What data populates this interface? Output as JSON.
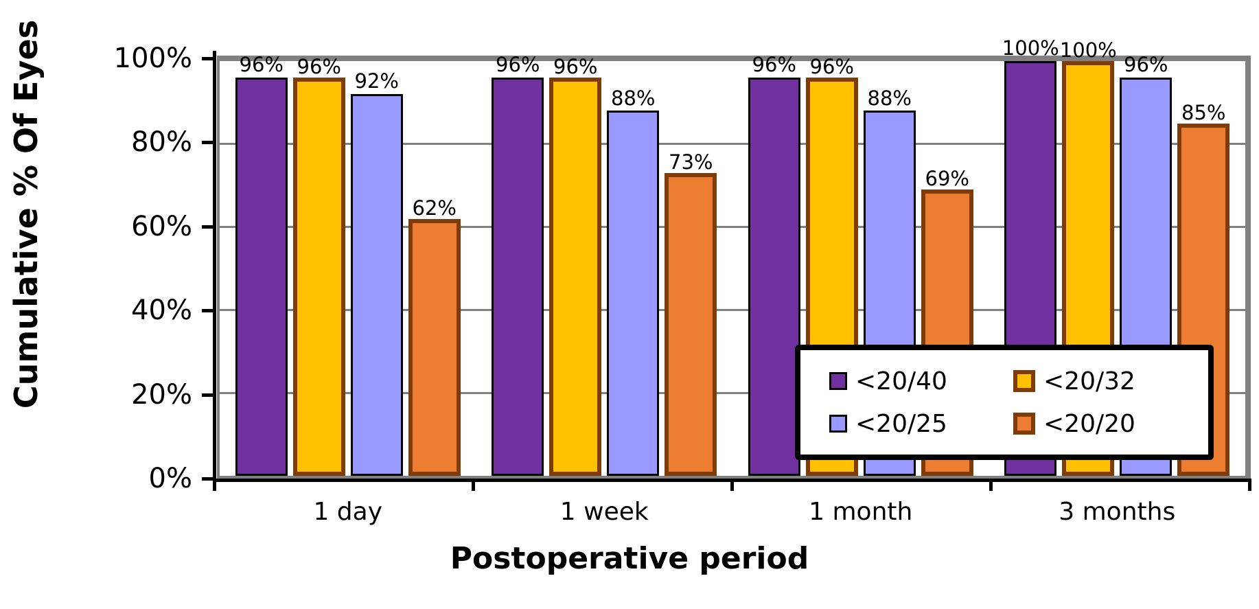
{
  "chart_data": {
    "type": "bar",
    "title": "",
    "xlabel": "Postoperative period",
    "ylabel": "Cumulative % Of Eyes",
    "categories": [
      "1 day",
      "1 week",
      "1 month",
      "3 months"
    ],
    "series": [
      {
        "name": "<20/40",
        "color": "#7030A0",
        "border_color": "#000000",
        "border_px": 3,
        "values": [
          96,
          96,
          96,
          100
        ]
      },
      {
        "name": "<20/32",
        "color": "#FFC000",
        "border_color": "#7F3B08",
        "border_px": 6,
        "values": [
          96,
          96,
          96,
          100
        ]
      },
      {
        "name": "<20/25",
        "color": "#9999FF",
        "border_color": "#000000",
        "border_px": 3,
        "values": [
          92,
          88,
          88,
          96
        ]
      },
      {
        "name": "<20/20",
        "color": "#ED7D31",
        "border_color": "#7F3B08",
        "border_px": 6,
        "values": [
          62,
          73,
          69,
          85
        ]
      }
    ],
    "data_labels": [
      [
        "96%",
        "96%",
        "92%",
        "62%"
      ],
      [
        "96%",
        "96%",
        "88%",
        "73%"
      ],
      [
        "96%",
        "96%",
        "88%",
        "69%"
      ],
      [
        "100%",
        "100%",
        "96%",
        "85%"
      ]
    ],
    "y_ticks": [
      "0%",
      "20%",
      "40%",
      "60%",
      "80%",
      "100%"
    ],
    "ylim": [
      0,
      100
    ],
    "grid": true,
    "gridline_percents": [
      20,
      40,
      60,
      80
    ],
    "legend_position": "inside-right",
    "legend_rows": [
      [
        "<20/40",
        "<20/32"
      ],
      [
        "<20/25",
        "<20/20"
      ]
    ]
  },
  "colors": {
    "background": "#FFFFFF",
    "gridline": "#808080",
    "plot_border": "#808080",
    "axis": "#000000",
    "text": "#000000",
    "legend_border": "#000000"
  }
}
